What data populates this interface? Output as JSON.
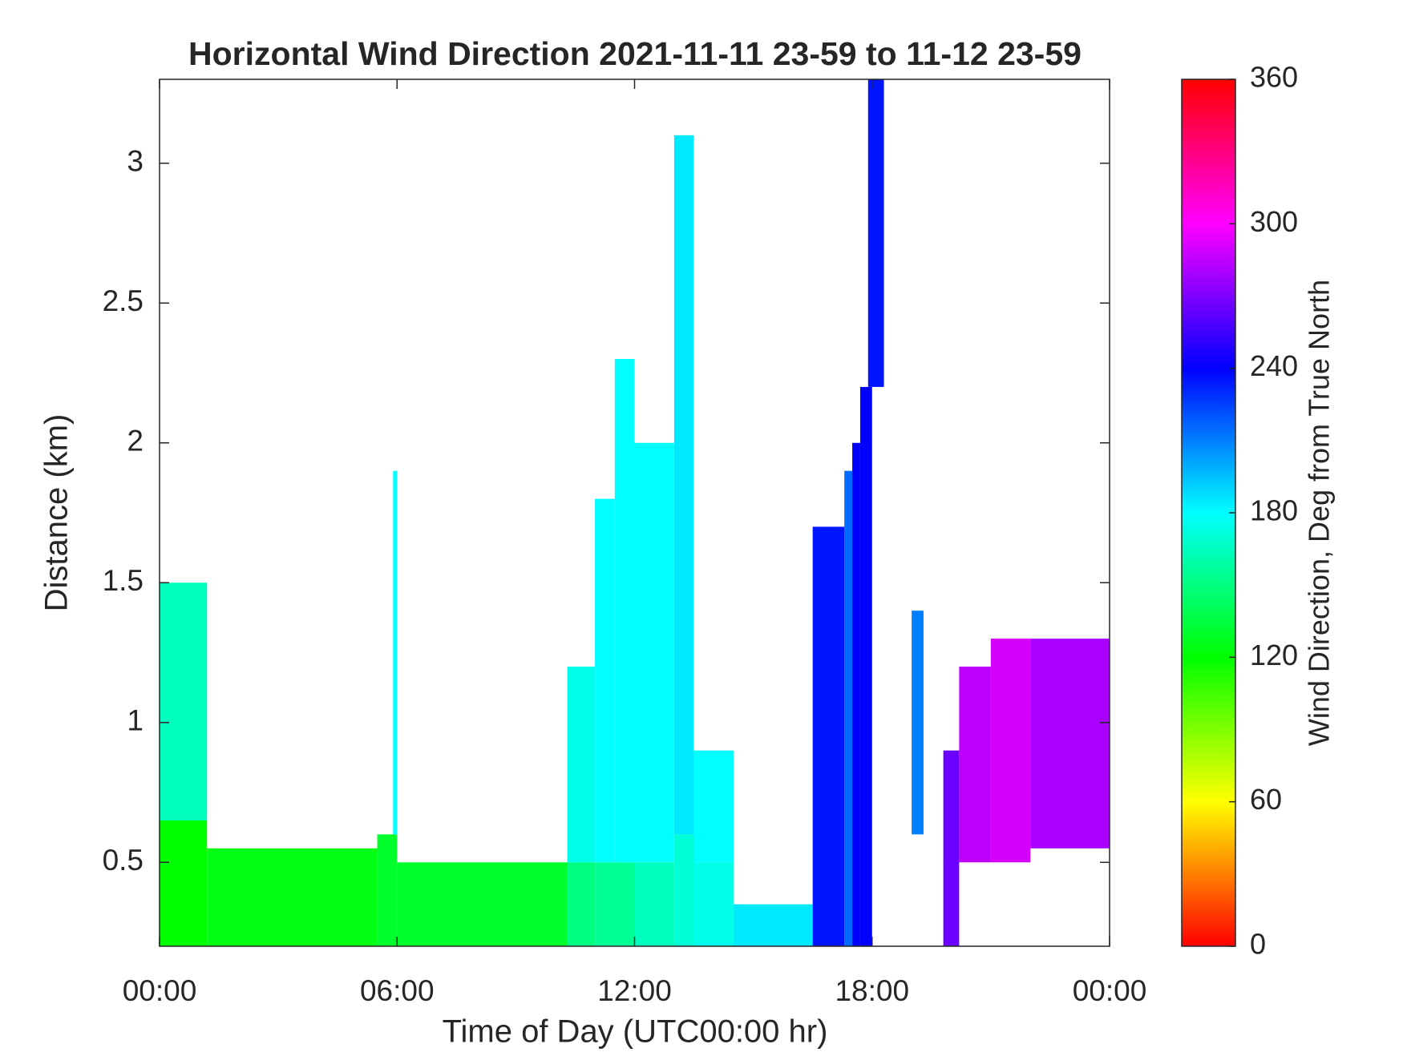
{
  "chart_data": {
    "type": "heatmap",
    "title": "Horizontal Wind Direction 2021-11-11 23-59 to 11-12 23-59",
    "x_label": "Time of Day (UTC00:00 hr)",
    "y_label": "Distance (km)",
    "colorbar_label": "Wind Direction, Deg from True North",
    "colormap": "hsv",
    "xlim": [
      0,
      24
    ],
    "xticks": [
      {
        "value": 0,
        "label": "00:00"
      },
      {
        "value": 6,
        "label": "06:00"
      },
      {
        "value": 12,
        "label": "12:00"
      },
      {
        "value": 18,
        "label": "18:00"
      },
      {
        "value": 24,
        "label": "00:00"
      }
    ],
    "ylim": [
      0.2,
      3.3
    ],
    "yticks": [
      0.5,
      1,
      1.5,
      2,
      2.5,
      3
    ],
    "clim": [
      0,
      360
    ],
    "cticks": [
      0,
      60,
      120,
      180,
      240,
      300,
      360
    ],
    "cells": [
      [
        0,
        1.2,
        0.2,
        0.65,
        120
      ],
      [
        0,
        1.2,
        0.65,
        1.5,
        165
      ],
      [
        1.2,
        5.5,
        0.2,
        0.55,
        125
      ],
      [
        5.5,
        6,
        0.2,
        0.6,
        130
      ],
      [
        5.9,
        6,
        0.6,
        1.9,
        180
      ],
      [
        6,
        10.3,
        0.2,
        0.5,
        130
      ],
      [
        10.3,
        11,
        0.2,
        0.5,
        150
      ],
      [
        10.3,
        11,
        0.5,
        1.2,
        175
      ],
      [
        11,
        12,
        0.2,
        0.5,
        155
      ],
      [
        11,
        11.5,
        0.5,
        1.8,
        180
      ],
      [
        11.5,
        12,
        0.5,
        2.3,
        180
      ],
      [
        12,
        13,
        0.2,
        0.5,
        165
      ],
      [
        12,
        13,
        0.5,
        2.0,
        180
      ],
      [
        13,
        13.5,
        0.2,
        0.6,
        170
      ],
      [
        13,
        13.5,
        0.6,
        3.1,
        185
      ],
      [
        13.5,
        14.5,
        0.2,
        0.5,
        175
      ],
      [
        13.5,
        14.5,
        0.5,
        0.9,
        180
      ],
      [
        14.5,
        16.5,
        0.2,
        0.35,
        185
      ],
      [
        16.5,
        17.3,
        0.2,
        1.7,
        235
      ],
      [
        17.3,
        17.5,
        0.2,
        1.9,
        215
      ],
      [
        17.5,
        17.7,
        0.2,
        2.0,
        240
      ],
      [
        17.7,
        18,
        0.2,
        2.2,
        240
      ],
      [
        17.9,
        18.3,
        2.2,
        3.3,
        235
      ],
      [
        19,
        19.3,
        0.6,
        1.4,
        210
      ],
      [
        19.8,
        20.2,
        0.2,
        0.9,
        265
      ],
      [
        20.2,
        21,
        0.5,
        1.2,
        285
      ],
      [
        21,
        22,
        0.5,
        1.3,
        290
      ],
      [
        22,
        24,
        0.55,
        1.3,
        280
      ]
    ]
  }
}
